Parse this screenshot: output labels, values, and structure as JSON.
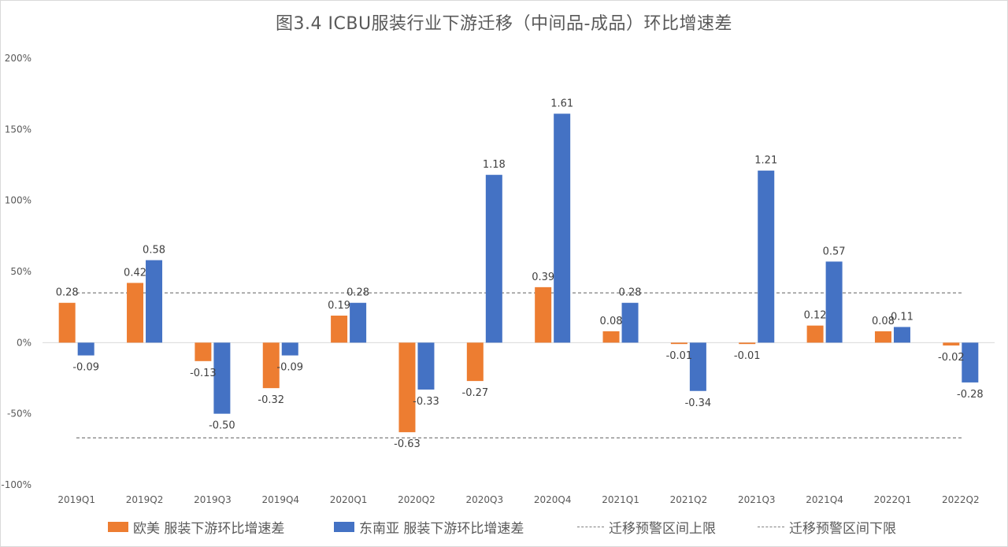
{
  "chart_data": {
    "type": "bar",
    "title": "图3.4  ICBU服装行业下游迁移（中间品-成品）环比增速差",
    "categories": [
      "2019Q1",
      "2019Q2",
      "2019Q3",
      "2019Q4",
      "2020Q1",
      "2020Q2",
      "2020Q3",
      "2020Q4",
      "2021Q1",
      "2021Q2",
      "2021Q3",
      "2021Q4",
      "2022Q1",
      "2022Q2"
    ],
    "series": [
      {
        "name": "欧美 服装下游环比增速差",
        "color": "#ED7D31",
        "values": [
          0.28,
          0.42,
          -0.13,
          -0.32,
          0.19,
          -0.63,
          -0.27,
          0.39,
          0.08,
          -0.01,
          -0.01,
          0.12,
          0.08,
          -0.02
        ],
        "labels": [
          "0.28",
          "0.42",
          "-0.13",
          "-0.32",
          "0.19",
          "-0.63",
          "-0.27",
          "0.39",
          "0.08",
          "-0.01",
          "-0.01",
          "0.12",
          "0.08",
          "-0.02"
        ]
      },
      {
        "name": "东南亚 服装下游环比增速差",
        "color": "#4472C4",
        "values": [
          -0.09,
          0.58,
          -0.5,
          -0.09,
          0.28,
          -0.33,
          1.18,
          1.61,
          0.28,
          -0.34,
          1.21,
          0.57,
          0.11,
          -0.28
        ],
        "labels": [
          "-0.09",
          "0.58",
          "-0.50",
          "-0.09",
          "0.28",
          "-0.33",
          "1.18",
          "1.61",
          "0.28",
          "-0.34",
          "1.21",
          "0.57",
          "0.11",
          "-0.28"
        ]
      }
    ],
    "reference_lines": [
      {
        "name": "迁移预警区间上限",
        "value": 0.35,
        "color": "#7F7F7F",
        "style": "dashed"
      },
      {
        "name": "迁移预警区间下限",
        "value": -0.67,
        "color": "#7F7F7F",
        "style": "dashed"
      }
    ],
    "yticks": [
      2.0,
      1.5,
      1.0,
      0.5,
      0.0,
      -0.5,
      -1.0
    ],
    "ytick_labels": [
      "200%",
      "150%",
      "100%",
      "50%",
      "0%",
      "-50%",
      "-100%"
    ],
    "ylim": [
      -1.0,
      2.0
    ],
    "grid": false,
    "legend_position": "bottom"
  }
}
